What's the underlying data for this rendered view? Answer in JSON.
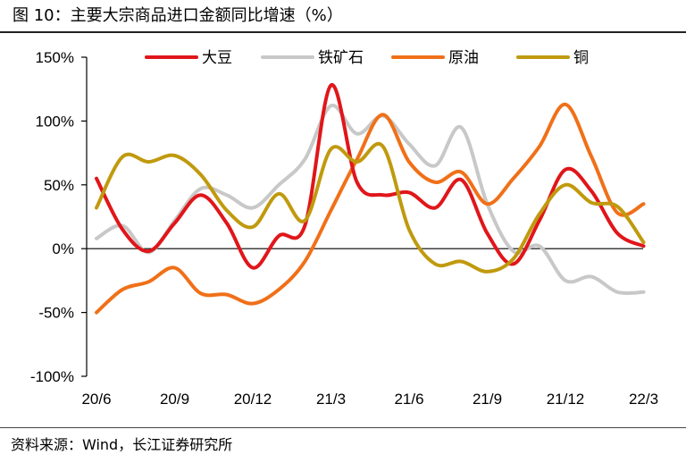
{
  "figure": {
    "title": "图 10：主要大宗商品进口金额同比增速（%）",
    "source": "资料来源：Wind，长江证券研究所"
  },
  "chart_data": {
    "type": "line",
    "title": "主要大宗商品进口金额同比增速（%）",
    "xlabel": "",
    "ylabel": "",
    "ylim": [
      -100,
      150
    ],
    "yticks": [
      150,
      100,
      50,
      0,
      -50,
      -100
    ],
    "ytick_labels": [
      "150%",
      "100%",
      "50%",
      "0%",
      "-50%",
      "-100%"
    ],
    "x": [
      "20/6",
      "20/7",
      "20/8",
      "20/9",
      "20/10",
      "20/11",
      "20/12",
      "21/1",
      "21/2",
      "21/3",
      "21/4",
      "21/5",
      "21/6",
      "21/7",
      "21/8",
      "21/9",
      "21/10",
      "21/11",
      "21/12",
      "22/1",
      "22/2",
      "22/3"
    ],
    "xtick_labels": [
      "20/6",
      "20/9",
      "20/12",
      "21/3",
      "21/6",
      "21/9",
      "21/12",
      "22/3"
    ],
    "legend_position": "top",
    "series": [
      {
        "name": "大豆",
        "color": "#e0161a",
        "values": [
          55,
          15,
          -2,
          20,
          42,
          20,
          -15,
          10,
          18,
          128,
          52,
          42,
          44,
          32,
          54,
          12,
          -12,
          22,
          62,
          45,
          12,
          2
        ]
      },
      {
        "name": "铁矿石",
        "color": "#c8c8c8",
        "values": [
          8,
          18,
          -3,
          22,
          47,
          42,
          32,
          50,
          70,
          112,
          90,
          104,
          82,
          65,
          95,
          35,
          -2,
          2,
          -25,
          -22,
          -34,
          -34
        ]
      },
      {
        "name": "原油",
        "color": "#f07018",
        "values": [
          -50,
          -32,
          -26,
          -15,
          -35,
          -36,
          -43,
          -32,
          -10,
          30,
          70,
          105,
          68,
          52,
          60,
          35,
          55,
          80,
          113,
          72,
          28,
          35
        ]
      },
      {
        "name": "铜",
        "color": "#c09a0e",
        "values": [
          32,
          72,
          68,
          73,
          58,
          30,
          17,
          43,
          22,
          78,
          68,
          80,
          15,
          -12,
          -10,
          -18,
          -8,
          27,
          50,
          36,
          33,
          5
        ]
      }
    ]
  }
}
